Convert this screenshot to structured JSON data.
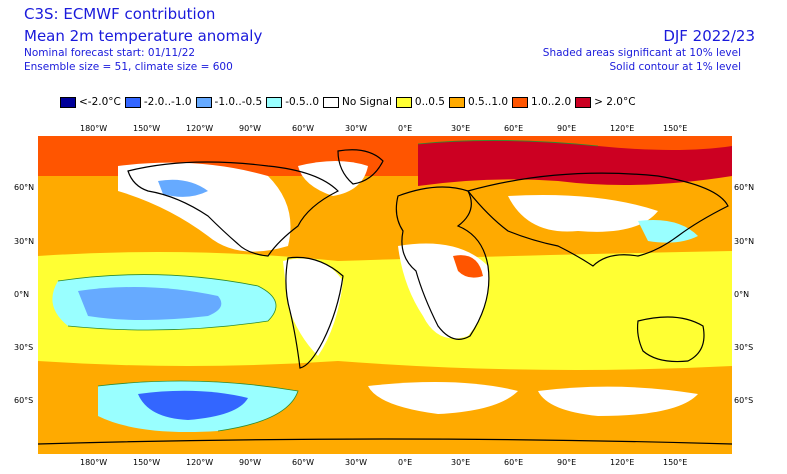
{
  "header": {
    "title_line1": "C3S: ECMWF contribution",
    "title_line2": "Mean 2m temperature anomaly",
    "forecast_start": "Nominal forecast start: 01/11/22",
    "ensemble": "Ensemble size = 51, climate size = 600",
    "period": "DJF 2022/23",
    "note_shaded": "Shaded areas significant at 10% level",
    "note_contour": "Solid contour at 1% level"
  },
  "legend": [
    {
      "label": "<-2.0°C",
      "color": "#000099"
    },
    {
      "label": "-2.0..-1.0",
      "color": "#3366ff"
    },
    {
      "label": "-1.0..-0.5",
      "color": "#66aaff"
    },
    {
      "label": "-0.5..0",
      "color": "#99ffff"
    },
    {
      "label": "No Signal",
      "color": "#ffffff"
    },
    {
      "label": "0..0.5",
      "color": "#ffff33"
    },
    {
      "label": "0.5..1.0",
      "color": "#ffaa00"
    },
    {
      "label": "1.0..2.0",
      "color": "#ff5500"
    },
    {
      "label": "> 2.0°C",
      "color": "#cc0022"
    }
  ],
  "axes": {
    "lon_labels": [
      "180°W",
      "150°W",
      "120°W",
      "90°W",
      "60°W",
      "30°W",
      "0°E",
      "30°E",
      "60°E",
      "90°E",
      "120°E",
      "150°E"
    ],
    "lat_labels": [
      "60°N",
      "30°N",
      "0°N",
      "30°S",
      "60°S"
    ]
  }
}
